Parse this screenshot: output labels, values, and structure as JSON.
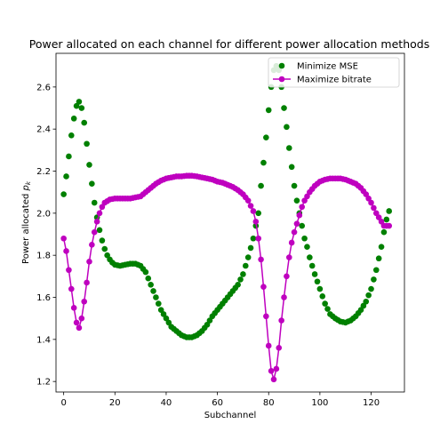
{
  "chart_data": {
    "type": "scatter",
    "title": "Power allocated on each channel for different power allocation methods",
    "xlabel": "Subchannel",
    "ylabel": "Power allocated p_k",
    "ylabel_main": "Power allocated ",
    "ylabel_var": "p",
    "ylabel_sub": "k",
    "xlim": [
      -3,
      133
    ],
    "ylim": [
      1.15,
      2.76
    ],
    "xticks": [
      0,
      20,
      40,
      60,
      80,
      100,
      120
    ],
    "yticks": [
      1.2,
      1.4,
      1.6,
      1.8,
      2.0,
      2.2,
      2.4,
      2.6
    ],
    "xtick_labels": [
      "0",
      "20",
      "40",
      "60",
      "80",
      "100",
      "120"
    ],
    "ytick_labels": [
      "1.2",
      "1.4",
      "1.6",
      "1.8",
      "2.0",
      "2.2",
      "2.4",
      "2.6"
    ],
    "legend_position": "top-right",
    "grid": false,
    "x_count": 128,
    "series": [
      {
        "name": "Minimize MSE",
        "style": "markers",
        "color": "#008000",
        "anchors": [
          [
            0,
            2.09
          ],
          [
            1,
            2.175
          ],
          [
            2,
            2.27
          ],
          [
            3,
            2.37
          ],
          [
            4,
            2.45
          ],
          [
            5,
            2.51
          ],
          [
            6,
            2.53
          ],
          [
            7,
            2.5
          ],
          [
            8,
            2.43
          ],
          [
            9,
            2.33
          ],
          [
            10,
            2.23
          ],
          [
            11,
            2.14
          ],
          [
            12,
            2.05
          ],
          [
            13,
            1.98
          ],
          [
            14,
            1.92
          ],
          [
            15,
            1.87
          ],
          [
            16,
            1.83
          ],
          [
            17,
            1.8
          ],
          [
            18,
            1.78
          ],
          [
            19,
            1.765
          ],
          [
            20,
            1.755
          ],
          [
            22,
            1.75
          ],
          [
            24,
            1.755
          ],
          [
            26,
            1.76
          ],
          [
            28,
            1.76
          ],
          [
            30,
            1.75
          ],
          [
            32,
            1.72
          ],
          [
            34,
            1.66
          ],
          [
            36,
            1.6
          ],
          [
            38,
            1.54
          ],
          [
            40,
            1.5
          ],
          [
            42,
            1.46
          ],
          [
            44,
            1.44
          ],
          [
            46,
            1.42
          ],
          [
            48,
            1.41
          ],
          [
            50,
            1.41
          ],
          [
            52,
            1.42
          ],
          [
            54,
            1.44
          ],
          [
            56,
            1.47
          ],
          [
            58,
            1.51
          ],
          [
            60,
            1.54
          ],
          [
            62,
            1.57
          ],
          [
            64,
            1.6
          ],
          [
            66,
            1.63
          ],
          [
            68,
            1.66
          ],
          [
            70,
            1.71
          ],
          [
            72,
            1.79
          ],
          [
            74,
            1.88
          ],
          [
            76,
            2.0
          ],
          [
            77,
            2.13
          ],
          [
            78,
            2.24
          ],
          [
            79,
            2.36
          ],
          [
            80,
            2.49
          ],
          [
            81,
            2.6
          ],
          [
            82,
            2.68
          ],
          [
            83,
            2.7
          ],
          [
            84,
            2.68
          ],
          [
            85,
            2.6
          ],
          [
            86,
            2.5
          ],
          [
            87,
            2.41
          ],
          [
            88,
            2.31
          ],
          [
            89,
            2.22
          ],
          [
            90,
            2.13
          ],
          [
            91,
            2.06
          ],
          [
            92,
            2.0
          ],
          [
            93,
            1.94
          ],
          [
            94,
            1.88
          ],
          [
            95,
            1.84
          ],
          [
            96,
            1.79
          ],
          [
            98,
            1.71
          ],
          [
            100,
            1.64
          ],
          [
            102,
            1.57
          ],
          [
            104,
            1.52
          ],
          [
            106,
            1.5
          ],
          [
            108,
            1.485
          ],
          [
            110,
            1.48
          ],
          [
            112,
            1.49
          ],
          [
            114,
            1.51
          ],
          [
            116,
            1.54
          ],
          [
            118,
            1.58
          ],
          [
            120,
            1.64
          ],
          [
            122,
            1.73
          ],
          [
            124,
            1.84
          ],
          [
            125,
            1.91
          ],
          [
            126,
            1.97
          ],
          [
            127,
            2.01
          ]
        ]
      },
      {
        "name": "Maximize bitrate",
        "style": "line-markers",
        "color": "#bf00bf",
        "anchors": [
          [
            0,
            1.88
          ],
          [
            1,
            1.82
          ],
          [
            2,
            1.73
          ],
          [
            3,
            1.64
          ],
          [
            4,
            1.55
          ],
          [
            5,
            1.48
          ],
          [
            6,
            1.455
          ],
          [
            7,
            1.5
          ],
          [
            8,
            1.58
          ],
          [
            9,
            1.67
          ],
          [
            10,
            1.77
          ],
          [
            11,
            1.85
          ],
          [
            12,
            1.91
          ],
          [
            13,
            1.96
          ],
          [
            14,
            2.0
          ],
          [
            15,
            2.03
          ],
          [
            16,
            2.05
          ],
          [
            18,
            2.065
          ],
          [
            20,
            2.07
          ],
          [
            22,
            2.07
          ],
          [
            24,
            2.07
          ],
          [
            26,
            2.07
          ],
          [
            28,
            2.075
          ],
          [
            30,
            2.08
          ],
          [
            32,
            2.1
          ],
          [
            34,
            2.12
          ],
          [
            36,
            2.14
          ],
          [
            38,
            2.155
          ],
          [
            40,
            2.165
          ],
          [
            42,
            2.17
          ],
          [
            44,
            2.175
          ],
          [
            46,
            2.175
          ],
          [
            48,
            2.178
          ],
          [
            50,
            2.178
          ],
          [
            52,
            2.175
          ],
          [
            54,
            2.17
          ],
          [
            56,
            2.165
          ],
          [
            58,
            2.16
          ],
          [
            60,
            2.15
          ],
          [
            62,
            2.145
          ],
          [
            64,
            2.135
          ],
          [
            66,
            2.125
          ],
          [
            68,
            2.11
          ],
          [
            70,
            2.09
          ],
          [
            72,
            2.06
          ],
          [
            74,
            2.01
          ],
          [
            75,
            1.96
          ],
          [
            76,
            1.88
          ],
          [
            77,
            1.78
          ],
          [
            78,
            1.65
          ],
          [
            79,
            1.51
          ],
          [
            80,
            1.37
          ],
          [
            81,
            1.25
          ],
          [
            82,
            1.21
          ],
          [
            83,
            1.26
          ],
          [
            84,
            1.36
          ],
          [
            85,
            1.49
          ],
          [
            86,
            1.6
          ],
          [
            87,
            1.7
          ],
          [
            88,
            1.79
          ],
          [
            89,
            1.86
          ],
          [
            90,
            1.91
          ],
          [
            91,
            1.95
          ],
          [
            92,
            1.99
          ],
          [
            93,
            2.03
          ],
          [
            94,
            2.06
          ],
          [
            96,
            2.1
          ],
          [
            98,
            2.13
          ],
          [
            100,
            2.15
          ],
          [
            102,
            2.16
          ],
          [
            104,
            2.165
          ],
          [
            106,
            2.165
          ],
          [
            108,
            2.165
          ],
          [
            110,
            2.16
          ],
          [
            112,
            2.15
          ],
          [
            114,
            2.14
          ],
          [
            116,
            2.12
          ],
          [
            118,
            2.09
          ],
          [
            120,
            2.05
          ],
          [
            122,
            2.0
          ],
          [
            124,
            1.96
          ],
          [
            125,
            1.94
          ],
          [
            126,
            1.94
          ],
          [
            127,
            1.94
          ]
        ]
      }
    ]
  }
}
